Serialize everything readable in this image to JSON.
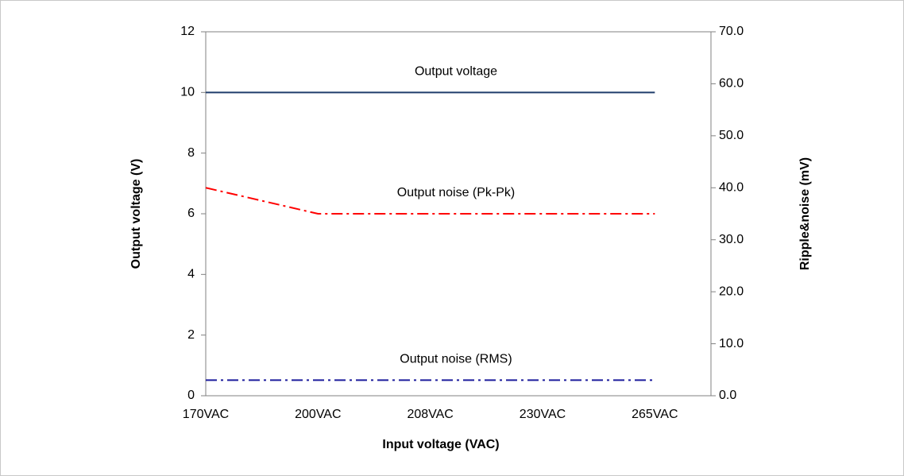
{
  "chart_data": {
    "type": "line",
    "xlabel": "Input voltage (VAC)",
    "ylabel": "Output voltage (V)",
    "y2label": "Ripple&noise (mV)",
    "categories": [
      "170VAC",
      "200VAC",
      "208VAC",
      "230VAC",
      "265VAC"
    ],
    "ylim": [
      0,
      12
    ],
    "yticks": [
      0,
      2,
      4,
      6,
      8,
      10,
      12
    ],
    "y2lim": [
      0,
      70
    ],
    "y2ticks": [
      {
        "value": 0,
        "label": "0.0"
      },
      {
        "value": 10,
        "label": "10.0"
      },
      {
        "value": 20,
        "label": "20.0"
      },
      {
        "value": 30,
        "label": "30.0"
      },
      {
        "value": 40,
        "label": "40.0"
      },
      {
        "value": 50,
        "label": "50.0"
      },
      {
        "value": 60,
        "label": "60.0"
      },
      {
        "value": 70,
        "label": "70.0"
      }
    ],
    "series": [
      {
        "name": "Output voltage",
        "color": "#1f3d6b",
        "line_style": "solid",
        "values": [
          10,
          10,
          10,
          10,
          10
        ]
      },
      {
        "name": "Output noise (Pk-Pk)",
        "color": "#ff0000",
        "line_style": "dashdot",
        "axis": "y2",
        "values": [
          40,
          35,
          35,
          35,
          35
        ]
      },
      {
        "name": "Output noise (RMS)",
        "color": "#1c1c9c",
        "line_style": "dashdot",
        "axis": "y2",
        "values": [
          3,
          3,
          3,
          3,
          3
        ]
      }
    ]
  }
}
